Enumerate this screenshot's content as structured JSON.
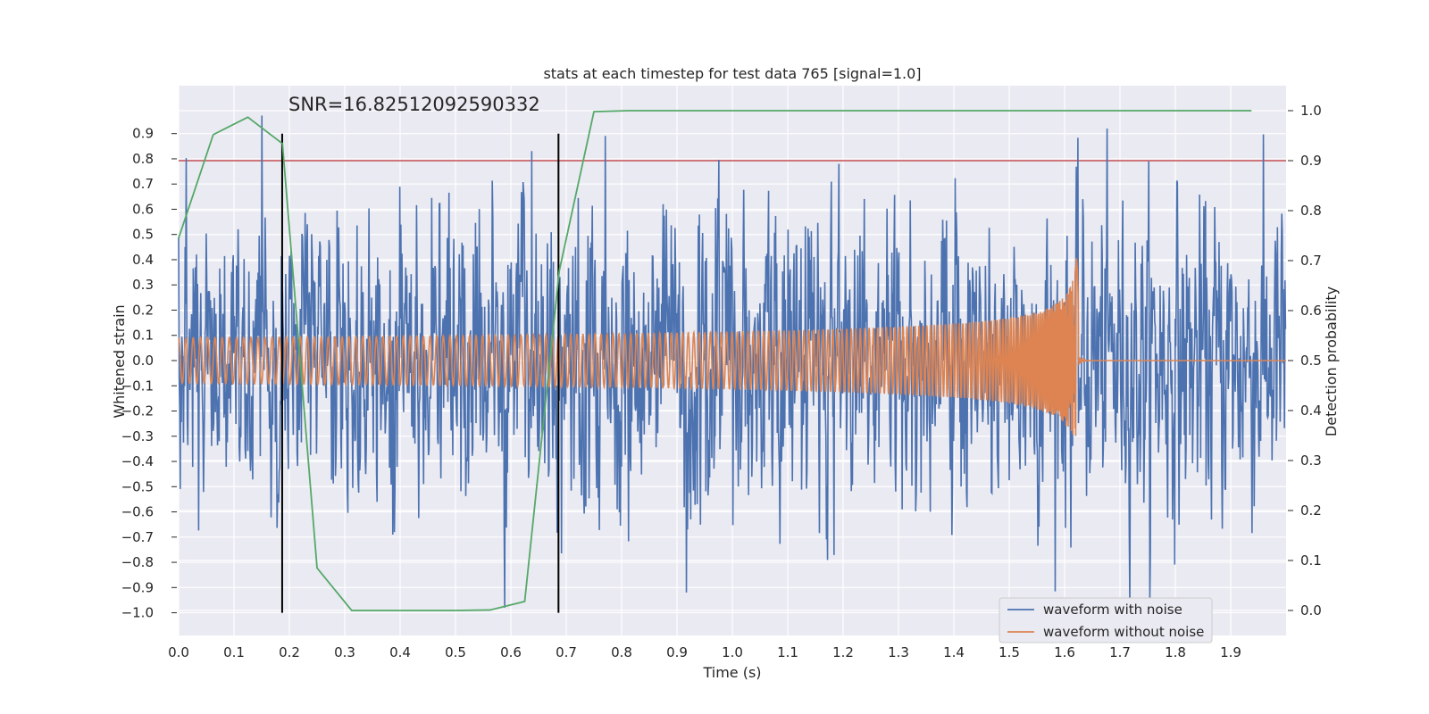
{
  "chart_data": {
    "type": "line",
    "title": "stats at each timestep for test data 765 [signal=1.0]",
    "xlabel": "Time (s)",
    "ylabel": "Whitened strain",
    "y2label": "Detection probability",
    "annotation": "SNR=16.82512092590332",
    "xlim": [
      0.0,
      2.0
    ],
    "ylim": [
      -1.09,
      1.09
    ],
    "y2lim": [
      -0.05,
      1.05
    ],
    "grid": true,
    "legend_position": "lower-right",
    "x_ticks": [
      "0.0",
      "0.1",
      "0.2",
      "0.3",
      "0.4",
      "0.5",
      "0.6",
      "0.7",
      "0.8",
      "0.9",
      "1.0",
      "1.1",
      "1.2",
      "1.3",
      "1.4",
      "1.5",
      "1.6",
      "1.7",
      "1.8",
      "1.9"
    ],
    "y_ticks": [
      "0.9",
      "0.8",
      "0.7",
      "0.6",
      "0.5",
      "0.4",
      "0.3",
      "0.2",
      "0.1",
      "0.0",
      "−0.1",
      "−0.2",
      "−0.3",
      "−0.4",
      "−0.5",
      "−0.6",
      "−0.7",
      "−0.8",
      "−0.9",
      "−1.0"
    ],
    "y2_ticks": [
      "1.0",
      "0.9",
      "0.8",
      "0.7",
      "0.6",
      "0.5",
      "0.4",
      "0.3",
      "0.2",
      "0.1",
      "0.0"
    ],
    "threshold_y": 0.9,
    "vlines_x": [
      0.187,
      0.686
    ],
    "vline_ylim": [
      -1.0,
      0.9
    ],
    "series": [
      {
        "name": "waveform with noise",
        "color": "#4c72b0",
        "description_kind": "noisy strain, std ~0.28, spikes up to ±1.0",
        "n_points": 2048,
        "noise_std": 0.28
      },
      {
        "name": "waveform without noise",
        "color": "#dd8452",
        "description_kind": "inspiral chirp, merger near t=1.625 s",
        "merger_time": 1.625
      },
      {
        "name": "",
        "color": "#55a868",
        "axis": "right",
        "x": [
          0.0,
          0.0625,
          0.125,
          0.1875,
          0.25,
          0.3125,
          0.375,
          0.4375,
          0.5,
          0.5625,
          0.625,
          0.6875,
          0.75,
          0.8125,
          0.875,
          0.9375,
          1.0,
          1.0625,
          1.125,
          1.1875,
          1.25,
          1.3125,
          1.375,
          1.4375,
          1.5,
          1.5625,
          1.625,
          1.6875,
          1.75,
          1.8125,
          1.875,
          1.9375
        ],
        "y": [
          0.745,
          0.952,
          0.987,
          0.934,
          0.085,
          0.0,
          0.0,
          0.0,
          0.0,
          0.001,
          0.018,
          0.68,
          0.998,
          1.0,
          1.0,
          1.0,
          1.0,
          1.0,
          1.0,
          1.0,
          1.0,
          1.0,
          1.0,
          1.0,
          1.0,
          1.0,
          1.0,
          1.0,
          1.0,
          1.0,
          1.0,
          1.0
        ]
      },
      {
        "name": "",
        "color": "#c44e52",
        "axis": "right",
        "kind": "threshold",
        "y": 0.9
      }
    ]
  }
}
